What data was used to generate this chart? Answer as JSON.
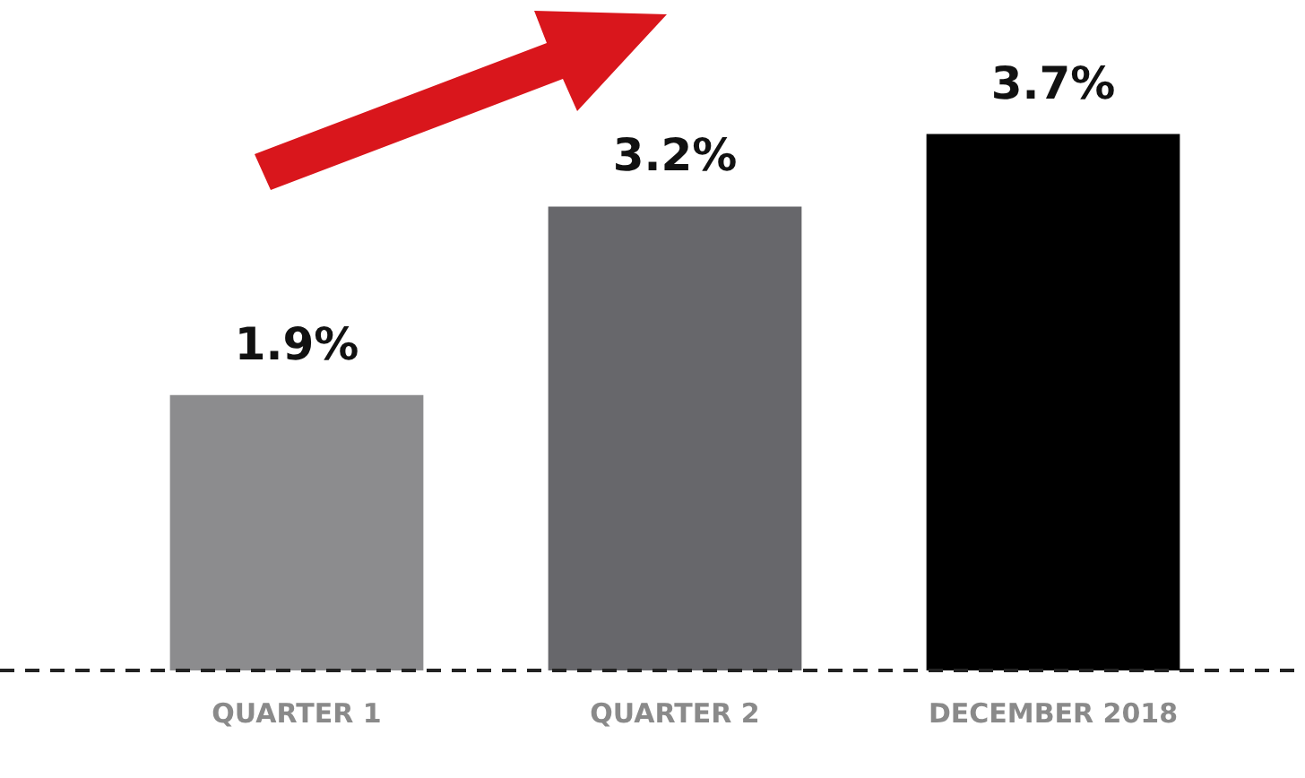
{
  "chart_data": {
    "type": "bar",
    "categories": [
      "QUARTER 1",
      "QUARTER 2",
      "DECEMBER 2018"
    ],
    "values": [
      1.9,
      3.2,
      3.7
    ],
    "colors": [
      "#8c8c8e",
      "#67676b",
      "#000000"
    ],
    "value_labels": [
      "1.9%",
      "3.2%",
      "3.7%"
    ],
    "grid": false,
    "legend": false
  }
}
